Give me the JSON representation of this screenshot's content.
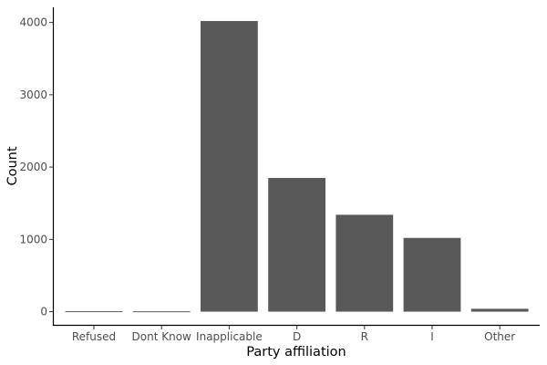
{
  "chart_data": {
    "type": "bar",
    "title": "",
    "xlabel": "Party affiliation",
    "ylabel": "Count",
    "categories": [
      "Refused",
      "Dont Know",
      "Inapplicable",
      "D",
      "R",
      "I",
      "Other"
    ],
    "values": [
      6,
      5,
      4020,
      1850,
      1340,
      1020,
      40
    ],
    "ylim": [
      -195,
      4210
    ],
    "yticks": [
      0,
      1000,
      2000,
      3000,
      4000
    ],
    "grid": false,
    "legend": "none",
    "colors": {
      "bar": "#595959",
      "axis": "#000000",
      "tick_text": "#4d4d4d",
      "background": "#ffffff"
    }
  }
}
